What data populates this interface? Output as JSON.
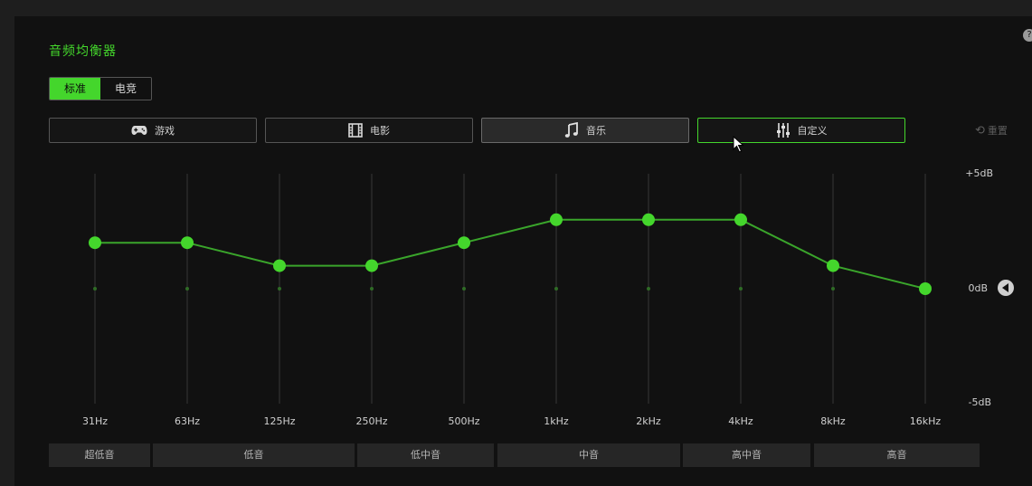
{
  "title": "音频均衡器",
  "mode_tabs": [
    {
      "label": "标准",
      "active": true
    },
    {
      "label": "电竞",
      "active": false
    }
  ],
  "presets": [
    {
      "label": "游戏",
      "icon": "gamepad-icon",
      "selected": false
    },
    {
      "label": "电影",
      "icon": "film-icon",
      "selected": false
    },
    {
      "label": "音乐",
      "icon": "music-note-icon",
      "selected": true
    },
    {
      "label": "自定义",
      "icon": "sliders-icon",
      "selected": false,
      "hover": true
    }
  ],
  "reset_label": "重置",
  "db_labels": {
    "top": "+5dB",
    "mid": "0dB",
    "bottom": "-5dB"
  },
  "band_groups": [
    {
      "label": "超低音"
    },
    {
      "label": "低音"
    },
    {
      "label": "低中音"
    },
    {
      "label": "中音"
    },
    {
      "label": "高中音"
    },
    {
      "label": "高音"
    }
  ],
  "colors": {
    "accent": "#44d62c",
    "track": "#2b2b2b",
    "text": "#cfcfcf"
  },
  "chart_data": {
    "type": "line",
    "categories": [
      "31Hz",
      "63Hz",
      "125Hz",
      "250Hz",
      "500Hz",
      "1kHz",
      "2kHz",
      "4kHz",
      "8kHz",
      "16kHz"
    ],
    "values": [
      2,
      2,
      1,
      1,
      2,
      3,
      3,
      3,
      1,
      0
    ],
    "ylim": [
      -5,
      5
    ],
    "grid": true
  }
}
